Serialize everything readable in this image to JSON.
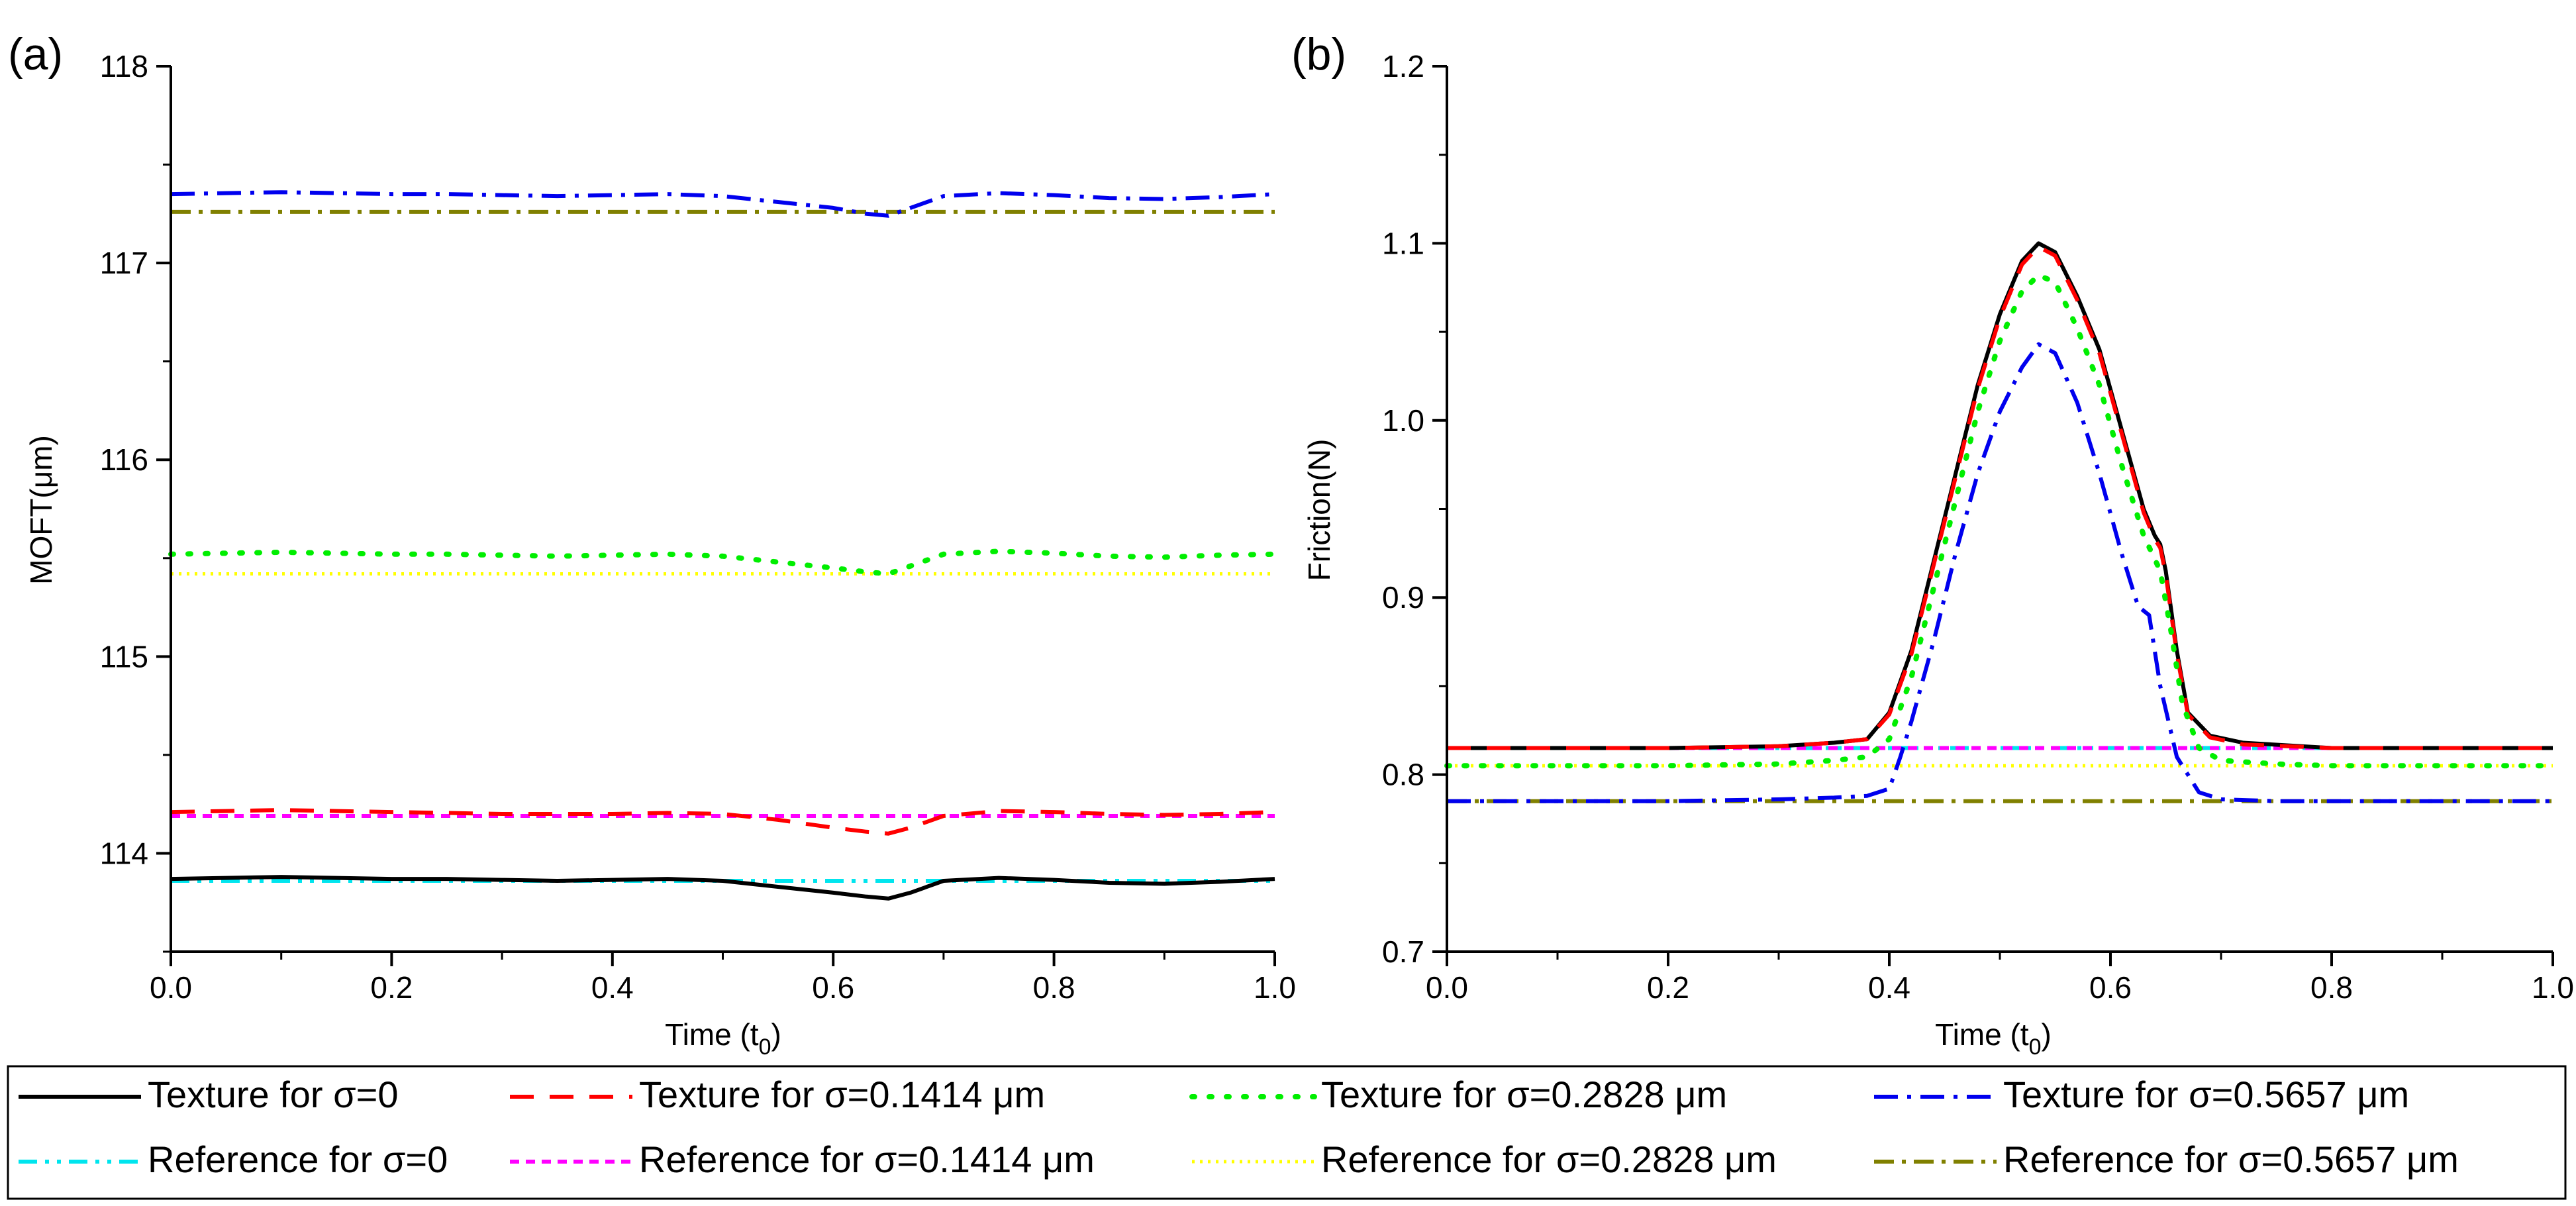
{
  "colors": {
    "texture_s0": "#000000",
    "reference_s0": "#00e5ee",
    "texture_s1": "#ff0000",
    "reference_s1": "#ff00ff",
    "texture_s2": "#00ee00",
    "reference_s2": "#ffff00",
    "texture_s3": "#0000ee",
    "reference_s3": "#808000"
  },
  "legend": {
    "entries": [
      {
        "key": "texture_s0",
        "label": "Texture for σ=0"
      },
      {
        "key": "texture_s1",
        "label": "Texture for σ=0.1414 μm"
      },
      {
        "key": "texture_s2",
        "label": "Texture for σ=0.2828 μm"
      },
      {
        "key": "texture_s3",
        "label": "Texture for σ=0.5657 μm"
      },
      {
        "key": "reference_s0",
        "label": "Reference for σ=0"
      },
      {
        "key": "reference_s1",
        "label": "Reference for σ=0.1414 μm"
      },
      {
        "key": "reference_s2",
        "label": "Reference for σ=0.2828 μm"
      },
      {
        "key": "reference_s3",
        "label": "Reference for σ=0.5657 μm"
      }
    ]
  },
  "chart_data": [
    {
      "panel": "(a)",
      "type": "line",
      "xlabel_main": "Time (t",
      "xlabel_sub": "0",
      "xlabel_end": ")",
      "ylabel": "MOFT(μm)",
      "xlim": [
        0,
        1.0
      ],
      "ylim": [
        113.5,
        118.0
      ],
      "xticks": [
        0.0,
        0.2,
        0.4,
        0.6,
        0.8,
        1.0
      ],
      "xtick_labels": [
        "0.0",
        "0.2",
        "0.4",
        "0.6",
        "0.8",
        "1.0"
      ],
      "yticks": [
        114,
        115,
        116,
        117,
        118
      ],
      "ytick_labels": [
        "114",
        "115",
        "116",
        "117",
        "118"
      ],
      "series": [
        {
          "key": "reference_s0",
          "name": "Reference for σ=0",
          "x": [
            0,
            1
          ],
          "y": [
            113.86,
            113.86
          ]
        },
        {
          "key": "reference_s1",
          "name": "Reference for σ=0.1414 μm",
          "x": [
            0,
            1
          ],
          "y": [
            114.19,
            114.19
          ]
        },
        {
          "key": "reference_s2",
          "name": "Reference for σ=0.2828 μm",
          "x": [
            0,
            1
          ],
          "y": [
            115.42,
            115.42
          ]
        },
        {
          "key": "reference_s3",
          "name": "Reference for σ=0.5657 μm",
          "x": [
            0,
            1
          ],
          "y": [
            117.26,
            117.26
          ]
        },
        {
          "key": "texture_s0",
          "name": "Texture for σ=0",
          "x": [
            0,
            0.05,
            0.1,
            0.15,
            0.2,
            0.25,
            0.3,
            0.35,
            0.4,
            0.45,
            0.5,
            0.55,
            0.6,
            0.63,
            0.65,
            0.67,
            0.7,
            0.75,
            0.8,
            0.85,
            0.9,
            0.95,
            1.0
          ],
          "y": [
            113.87,
            113.875,
            113.88,
            113.875,
            113.87,
            113.87,
            113.865,
            113.86,
            113.865,
            113.87,
            113.86,
            113.83,
            113.8,
            113.78,
            113.77,
            113.8,
            113.86,
            113.875,
            113.865,
            113.85,
            113.845,
            113.855,
            113.87
          ]
        },
        {
          "key": "texture_s1",
          "name": "Texture for σ=0.1414 μm",
          "x": [
            0,
            0.05,
            0.1,
            0.15,
            0.2,
            0.25,
            0.3,
            0.35,
            0.4,
            0.45,
            0.5,
            0.55,
            0.6,
            0.63,
            0.65,
            0.67,
            0.7,
            0.75,
            0.8,
            0.85,
            0.9,
            0.95,
            1.0
          ],
          "y": [
            114.21,
            114.215,
            114.22,
            114.215,
            114.21,
            114.205,
            114.2,
            114.2,
            114.2,
            114.205,
            114.2,
            114.17,
            114.13,
            114.11,
            114.1,
            114.13,
            114.19,
            114.215,
            114.21,
            114.2,
            114.195,
            114.2,
            114.21
          ]
        },
        {
          "key": "texture_s2",
          "name": "Texture for σ=0.2828 μm",
          "x": [
            0,
            0.05,
            0.1,
            0.15,
            0.2,
            0.25,
            0.3,
            0.35,
            0.4,
            0.45,
            0.5,
            0.55,
            0.6,
            0.63,
            0.65,
            0.67,
            0.7,
            0.75,
            0.8,
            0.85,
            0.9,
            0.95,
            1.0
          ],
          "y": [
            115.52,
            115.525,
            115.53,
            115.525,
            115.52,
            115.52,
            115.515,
            115.51,
            115.515,
            115.52,
            115.51,
            115.48,
            115.45,
            115.43,
            115.42,
            115.46,
            115.52,
            115.535,
            115.525,
            115.51,
            115.505,
            115.515,
            115.52
          ]
        },
        {
          "key": "texture_s3",
          "name": "Texture for σ=0.5657 μm",
          "x": [
            0,
            0.05,
            0.1,
            0.15,
            0.2,
            0.25,
            0.3,
            0.35,
            0.4,
            0.45,
            0.5,
            0.55,
            0.6,
            0.63,
            0.65,
            0.67,
            0.7,
            0.75,
            0.8,
            0.85,
            0.9,
            0.95,
            1.0
          ],
          "y": [
            117.35,
            117.355,
            117.36,
            117.355,
            117.35,
            117.35,
            117.345,
            117.34,
            117.345,
            117.35,
            117.34,
            117.31,
            117.28,
            117.25,
            117.24,
            117.28,
            117.34,
            117.355,
            117.345,
            117.33,
            117.325,
            117.335,
            117.35
          ]
        }
      ]
    },
    {
      "panel": "(b)",
      "type": "line",
      "xlabel_main": "Time (t",
      "xlabel_sub": "0",
      "xlabel_end": ")",
      "ylabel": "Friction(N)",
      "xlim": [
        0,
        1.0
      ],
      "ylim": [
        0.7,
        1.2
      ],
      "xticks": [
        0.0,
        0.2,
        0.4,
        0.6,
        0.8,
        1.0
      ],
      "xtick_labels": [
        "0.0",
        "0.2",
        "0.4",
        "0.6",
        "0.8",
        "1.0"
      ],
      "yticks": [
        0.7,
        0.8,
        0.9,
        1.0,
        1.1,
        1.2
      ],
      "ytick_labels": [
        "0.7",
        "0.8",
        "0.9",
        "1.0",
        "1.1",
        "1.2"
      ],
      "series": [
        {
          "key": "reference_s0",
          "name": "Reference for σ=0",
          "x": [
            0,
            1
          ],
          "y": [
            0.815,
            0.815
          ]
        },
        {
          "key": "reference_s1",
          "name": "Reference for σ=0.1414 μm",
          "x": [
            0,
            1
          ],
          "y": [
            0.815,
            0.815
          ]
        },
        {
          "key": "reference_s2",
          "name": "Reference for σ=0.2828 μm",
          "x": [
            0,
            1
          ],
          "y": [
            0.805,
            0.805
          ]
        },
        {
          "key": "reference_s3",
          "name": "Reference for σ=0.5657 μm",
          "x": [
            0,
            1
          ],
          "y": [
            0.785,
            0.785
          ]
        },
        {
          "key": "texture_s0",
          "name": "Texture for σ=0",
          "x": [
            0,
            0.1,
            0.2,
            0.3,
            0.35,
            0.38,
            0.4,
            0.42,
            0.44,
            0.46,
            0.48,
            0.5,
            0.52,
            0.535,
            0.55,
            0.57,
            0.59,
            0.61,
            0.63,
            0.64,
            0.645,
            0.65,
            0.66,
            0.67,
            0.69,
            0.72,
            0.8,
            0.9,
            1.0
          ],
          "y": [
            0.815,
            0.815,
            0.815,
            0.816,
            0.818,
            0.82,
            0.835,
            0.87,
            0.92,
            0.97,
            1.02,
            1.06,
            1.09,
            1.1,
            1.095,
            1.07,
            1.04,
            0.995,
            0.95,
            0.935,
            0.93,
            0.915,
            0.87,
            0.835,
            0.822,
            0.818,
            0.815,
            0.815,
            0.815
          ]
        },
        {
          "key": "texture_s1",
          "name": "Texture for σ=0.1414 μm",
          "x": [
            0,
            0.1,
            0.2,
            0.3,
            0.35,
            0.38,
            0.4,
            0.42,
            0.44,
            0.46,
            0.48,
            0.5,
            0.52,
            0.535,
            0.55,
            0.57,
            0.59,
            0.61,
            0.63,
            0.64,
            0.645,
            0.65,
            0.66,
            0.67,
            0.69,
            0.72,
            0.8,
            0.9,
            1.0
          ],
          "y": [
            0.815,
            0.815,
            0.815,
            0.816,
            0.818,
            0.82,
            0.834,
            0.868,
            0.918,
            0.968,
            1.018,
            1.058,
            1.088,
            1.098,
            1.093,
            1.068,
            1.038,
            0.993,
            0.948,
            0.933,
            0.928,
            0.913,
            0.868,
            0.834,
            0.821,
            0.817,
            0.815,
            0.815,
            0.815
          ]
        },
        {
          "key": "texture_s2",
          "name": "Texture for σ=0.2828 μm",
          "x": [
            0,
            0.1,
            0.2,
            0.3,
            0.35,
            0.38,
            0.4,
            0.42,
            0.44,
            0.46,
            0.48,
            0.5,
            0.52,
            0.535,
            0.55,
            0.57,
            0.59,
            0.61,
            0.63,
            0.645,
            0.655,
            0.665,
            0.68,
            0.7,
            0.75,
            0.8,
            0.9,
            1.0
          ],
          "y": [
            0.805,
            0.805,
            0.805,
            0.806,
            0.808,
            0.81,
            0.82,
            0.855,
            0.905,
            0.955,
            1.005,
            1.045,
            1.073,
            1.082,
            1.078,
            1.052,
            1.02,
            0.975,
            0.935,
            0.915,
            0.88,
            0.84,
            0.815,
            0.808,
            0.806,
            0.805,
            0.805,
            0.805
          ]
        },
        {
          "key": "texture_s3",
          "name": "Texture for σ=0.5657 μm",
          "x": [
            0,
            0.1,
            0.2,
            0.3,
            0.35,
            0.38,
            0.4,
            0.41,
            0.42,
            0.44,
            0.46,
            0.48,
            0.5,
            0.52,
            0.535,
            0.55,
            0.57,
            0.59,
            0.61,
            0.625,
            0.635,
            0.645,
            0.66,
            0.68,
            0.7,
            0.75,
            0.8,
            0.9,
            1.0
          ],
          "y": [
            0.785,
            0.785,
            0.785,
            0.786,
            0.787,
            0.788,
            0.792,
            0.81,
            0.83,
            0.875,
            0.925,
            0.97,
            1.005,
            1.03,
            1.043,
            1.038,
            1.01,
            0.97,
            0.925,
            0.895,
            0.89,
            0.85,
            0.81,
            0.79,
            0.786,
            0.785,
            0.785,
            0.785,
            0.785
          ]
        }
      ]
    }
  ]
}
